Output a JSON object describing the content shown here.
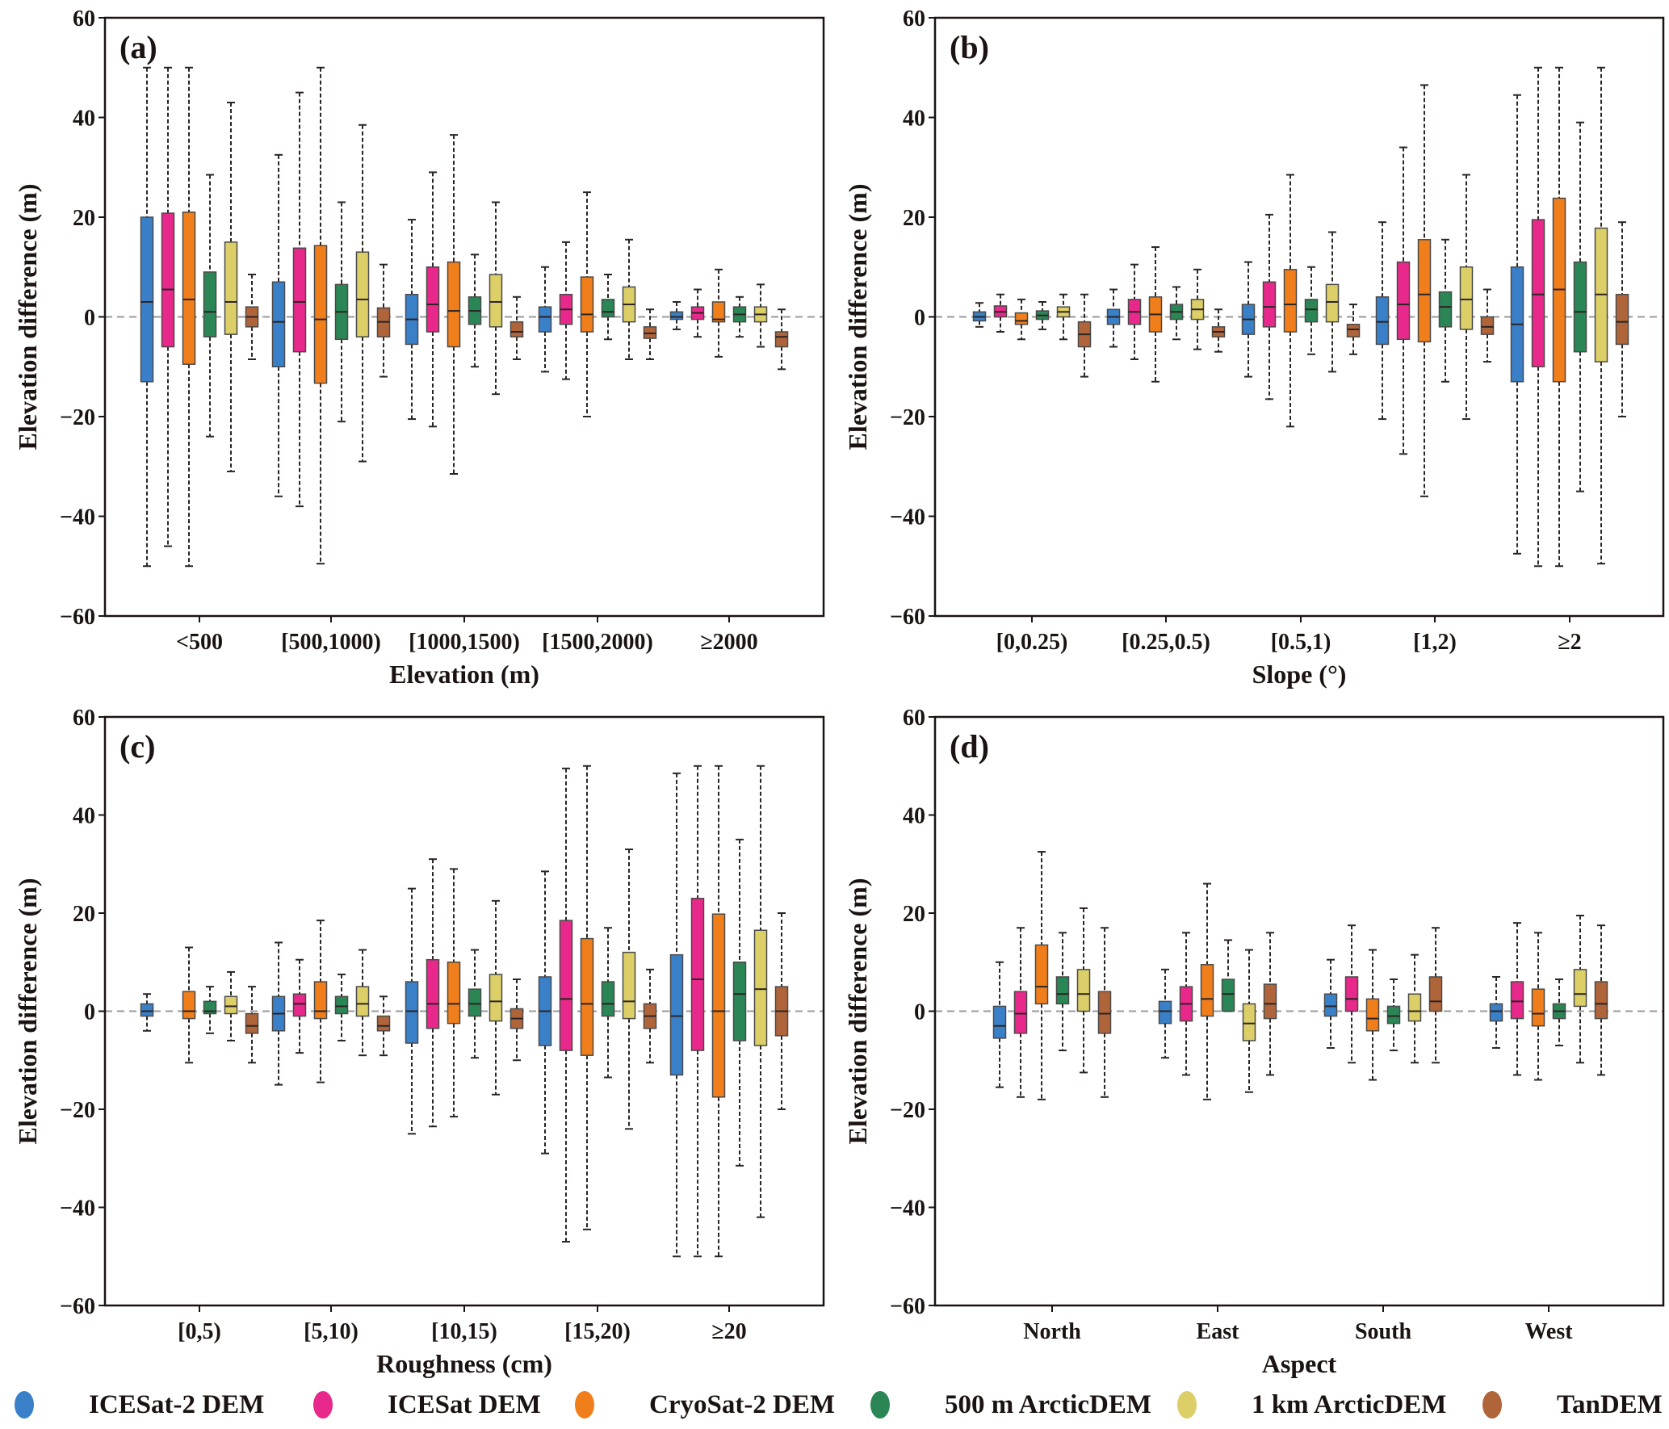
{
  "legend": [
    {
      "name": "ICESat-2 DEM",
      "color": "#3a80c8"
    },
    {
      "name": "ICESat DEM",
      "color": "#e8288a"
    },
    {
      "name": "CryoSat-2 DEM",
      "color": "#f07e1b"
    },
    {
      "name": "500 m ArcticDEM",
      "color": "#2a8654"
    },
    {
      "name": "1 km ArcticDEM",
      "color": "#dccf68"
    },
    {
      "name": "TanDEM",
      "color": "#b0643a"
    }
  ],
  "chart_data": [
    {
      "type": "box",
      "panel_label": "(a)",
      "xlabel": "Elevation (m)",
      "ylabel": "Elevation difference (m)",
      "ylim": [
        -60,
        60
      ],
      "yticks": [
        60,
        40,
        20,
        0,
        -20,
        -40,
        -60
      ],
      "reference_line": 0,
      "categories": [
        "<500",
        "[500,1000)",
        "[1000,1500)",
        "[1500,2000)",
        "≥2000"
      ],
      "series": [
        {
          "name": "ICESat-2 DEM",
          "boxes": [
            [
              -50,
              -13,
              3,
              20,
              50
            ],
            [
              -36,
              -10,
              -1,
              7,
              32.5
            ],
            [
              -20.5,
              -5.5,
              -0.5,
              4.5,
              19.5
            ],
            [
              -11,
              -3,
              0,
              2,
              10
            ],
            [
              -2.5,
              -0.5,
              0,
              1,
              3
            ]
          ]
        },
        {
          "name": "ICESat DEM",
          "boxes": [
            [
              -46,
              -6,
              5.5,
              20.8,
              50
            ],
            [
              -38,
              -7,
              3,
              13.8,
              45
            ],
            [
              -22,
              -3,
              2.5,
              10,
              29
            ],
            [
              -12.5,
              -1.5,
              1.5,
              4.5,
              15
            ],
            [
              -4,
              -0.5,
              0.8,
              2,
              5.5
            ]
          ]
        },
        {
          "name": "CryoSat-2 DEM",
          "boxes": [
            [
              -50,
              -9.5,
              3.5,
              21,
              50
            ],
            [
              -49.5,
              -13.3,
              -0.5,
              14.3,
              50
            ],
            [
              -31.5,
              -6,
              1.2,
              11,
              36.5
            ],
            [
              -20,
              -3,
              0.5,
              8,
              25
            ],
            [
              -8,
              -1,
              -0.5,
              3,
              9.5
            ]
          ]
        },
        {
          "name": "500 m ArcticDEM",
          "boxes": [
            [
              -24,
              -4,
              1,
              9,
              28.5
            ],
            [
              -21,
              -4.5,
              1,
              6.5,
              23
            ],
            [
              -10,
              -1.5,
              1.2,
              4,
              12.5
            ],
            [
              -4.5,
              0,
              1,
              3.5,
              8.5
            ],
            [
              -4,
              -1,
              0.5,
              2,
              4
            ]
          ]
        },
        {
          "name": "1 km ArcticDEM",
          "boxes": [
            [
              -31,
              -3.5,
              3,
              15,
              43
            ],
            [
              -29,
              -4,
              3.5,
              13,
              38.5
            ],
            [
              -15.5,
              -2,
              3,
              8.5,
              23
            ],
            [
              -8.5,
              -1,
              2.5,
              6,
              15.5
            ],
            [
              -6,
              -1,
              0.5,
              2,
              6.5
            ]
          ]
        },
        {
          "name": "TanDEM",
          "boxes": [
            [
              -8.5,
              -2,
              0,
              2,
              8.5
            ],
            [
              -12,
              -4,
              -1,
              1.8,
              10.5
            ],
            [
              -8.5,
              -4,
              -3,
              -1,
              4
            ],
            [
              -8.5,
              -4.3,
              -3.3,
              -2,
              1.5
            ],
            [
              -10.5,
              -6,
              -4,
              -3,
              1.5
            ]
          ]
        }
      ]
    },
    {
      "type": "box",
      "panel_label": "(b)",
      "xlabel": "Slope (°)",
      "ylabel": "Elevation difference (m)",
      "ylim": [
        -60,
        60
      ],
      "yticks": [
        60,
        40,
        20,
        0,
        -20,
        -40,
        -60
      ],
      "reference_line": 0,
      "categories": [
        "[0,0.25)",
        "[0.25,0.5)",
        "[0.5,1)",
        "[1,2)",
        "≥2"
      ],
      "series": [
        {
          "name": "ICESat-2 DEM",
          "boxes": [
            [
              -2,
              -0.8,
              0,
              1,
              2.8
            ],
            [
              -6,
              -1.5,
              0,
              1.5,
              5.5
            ],
            [
              -12,
              -3.5,
              -0.5,
              2.5,
              11
            ],
            [
              -20.5,
              -5.5,
              -1,
              4,
              19
            ],
            [
              -47.5,
              -13,
              -1.5,
              10,
              44.5
            ]
          ]
        },
        {
          "name": "ICESat DEM",
          "boxes": [
            [
              -3,
              0,
              1,
              2.2,
              4.5
            ],
            [
              -8.5,
              -1.5,
              1,
              3.5,
              10.5
            ],
            [
              -16.5,
              -2,
              2,
              7,
              20.5
            ],
            [
              -27.5,
              -4.5,
              2.5,
              11,
              34
            ],
            [
              -50,
              -10,
              4.5,
              19.5,
              50
            ]
          ]
        },
        {
          "name": "CryoSat-2 DEM",
          "boxes": [
            [
              -4.5,
              -1.5,
              -0.8,
              0.8,
              3.5
            ],
            [
              -13,
              -3,
              0.5,
              4,
              14
            ],
            [
              -22,
              -3,
              2.5,
              9.5,
              28.5
            ],
            [
              -36,
              -5,
              4.5,
              15.5,
              46.5
            ],
            [
              -50,
              -13,
              5.5,
              23.8,
              50
            ]
          ]
        },
        {
          "name": "500 m ArcticDEM",
          "boxes": [
            [
              -2.5,
              -0.5,
              0.3,
              1.2,
              3
            ],
            [
              -4.5,
              -0.5,
              1,
              2.5,
              6
            ],
            [
              -7.5,
              -1,
              1.5,
              3.5,
              10
            ],
            [
              -13,
              -2,
              2,
              5,
              15.5
            ],
            [
              -35,
              -7,
              1,
              11,
              39
            ]
          ]
        },
        {
          "name": "1 km ArcticDEM",
          "boxes": [
            [
              -4.5,
              0,
              1,
              2,
              4.5
            ],
            [
              -6.5,
              -0.5,
              1.5,
              3.5,
              9.5
            ],
            [
              -11,
              -1,
              3,
              6.5,
              17
            ],
            [
              -20.5,
              -2.5,
              3.5,
              10,
              28.5
            ],
            [
              -49.5,
              -9,
              4.5,
              17.8,
              50
            ]
          ]
        },
        {
          "name": "TanDEM",
          "boxes": [
            [
              -12,
              -6,
              -3.5,
              -1,
              4.5
            ],
            [
              -7,
              -4,
              -3,
              -2,
              1.5
            ],
            [
              -7.5,
              -4,
              -2.5,
              -1.5,
              2.5
            ],
            [
              -9,
              -3.5,
              -2,
              0,
              5.5
            ],
            [
              -20,
              -5.5,
              -1,
              4.5,
              19
            ]
          ]
        }
      ]
    },
    {
      "type": "box",
      "panel_label": "(c)",
      "xlabel": "Roughness (cm)",
      "ylabel": "Elevation difference (m)",
      "ylim": [
        -60,
        60
      ],
      "yticks": [
        60,
        40,
        20,
        0,
        -20,
        -40,
        -60
      ],
      "reference_line": 0,
      "categories": [
        "[0,5)",
        "[5,10)",
        "[10,15)",
        "[15,20)",
        "≥20"
      ],
      "series": [
        {
          "name": "ICESat-2 DEM",
          "boxes": [
            [
              -4,
              -1,
              0,
              1.5,
              3.5
            ],
            [
              -15,
              -4,
              -0.5,
              3,
              14
            ],
            [
              -25,
              -6.5,
              0,
              6,
              25
            ],
            [
              -29,
              -7,
              0,
              7,
              28.5
            ],
            [
              -50,
              -13,
              -1,
              11.5,
              48.5
            ]
          ]
        },
        {
          "name": "ICESat DEM",
          "boxes": [
            null,
            [
              -8.5,
              -1,
              1.5,
              3.5,
              10.5
            ],
            [
              -23.5,
              -3.5,
              1.5,
              10.5,
              31
            ],
            [
              -47,
              -8,
              2.5,
              18.5,
              49.5
            ],
            [
              -50,
              -8,
              6.5,
              23,
              50
            ]
          ]
        },
        {
          "name": "CryoSat-2 DEM",
          "boxes": [
            [
              -10.5,
              -1.5,
              0,
              4,
              13
            ],
            [
              -14.5,
              -1.5,
              0,
              6,
              18.5
            ],
            [
              -21.5,
              -2.5,
              1.5,
              10,
              29
            ],
            [
              -44.5,
              -9,
              1.5,
              14.8,
              50
            ],
            [
              -50,
              -17.5,
              0,
              19.8,
              50
            ]
          ]
        },
        {
          "name": "500 m ArcticDEM",
          "boxes": [
            [
              -4.5,
              -0.5,
              0,
              2,
              5
            ],
            [
              -6,
              -0.5,
              1,
              3,
              7.5
            ],
            [
              -9.5,
              -1,
              1.5,
              4.5,
              12.5
            ],
            [
              -13.5,
              -1,
              1.5,
              6,
              17
            ],
            [
              -31.5,
              -6,
              3.5,
              10,
              35
            ]
          ]
        },
        {
          "name": "1 km ArcticDEM",
          "boxes": [
            [
              -6,
              -0.5,
              1,
              3,
              8
            ],
            [
              -9,
              -1,
              1.5,
              5,
              12.5
            ],
            [
              -17,
              -2,
              2,
              7.5,
              22.5
            ],
            [
              -24,
              -1.5,
              2,
              12,
              33
            ],
            [
              -42,
              -7,
              4.5,
              16.5,
              50
            ]
          ]
        },
        {
          "name": "TanDEM",
          "boxes": [
            [
              -10.5,
              -4.5,
              -3,
              -0.5,
              5
            ],
            [
              -9,
              -4,
              -3,
              -1,
              3
            ],
            [
              -10,
              -3.5,
              -1.5,
              0.5,
              6.5
            ],
            [
              -10.5,
              -3.5,
              -1,
              1.5,
              8.5
            ],
            [
              -20,
              -5,
              0,
              5,
              20
            ]
          ]
        }
      ]
    },
    {
      "type": "box",
      "panel_label": "(d)",
      "xlabel": "Aspect",
      "ylabel": "Elevation difference (m)",
      "ylim": [
        -60,
        60
      ],
      "yticks": [
        60,
        40,
        20,
        0,
        -20,
        -40,
        -60
      ],
      "reference_line": 0,
      "categories": [
        "North",
        "East",
        "South",
        "West"
      ],
      "series": [
        {
          "name": "ICESat-2 DEM",
          "boxes": [
            [
              -15.5,
              -5.5,
              -3,
              1,
              10
            ],
            [
              -9.5,
              -2.5,
              0,
              2,
              8.5
            ],
            [
              -7.5,
              -1,
              1,
              3.5,
              10.5
            ],
            [
              -7.5,
              -2,
              0,
              1.5,
              7
            ]
          ]
        },
        {
          "name": "ICESat DEM",
          "boxes": [
            [
              -17.5,
              -4.5,
              -0.5,
              4,
              17
            ],
            [
              -13,
              -2,
              1.5,
              5,
              16
            ],
            [
              -10.5,
              0,
              2.5,
              7,
              17.5
            ],
            [
              -13,
              -1.5,
              2,
              6,
              18
            ]
          ]
        },
        {
          "name": "CryoSat-2 DEM",
          "boxes": [
            [
              -18,
              1.5,
              5,
              13.5,
              32.5
            ],
            [
              -18,
              -1,
              2.5,
              9.5,
              26
            ],
            [
              -14,
              -4,
              -1.5,
              2.5,
              12.5
            ],
            [
              -14,
              -3,
              -0.5,
              4.5,
              16
            ]
          ]
        },
        {
          "name": "500 m ArcticDEM",
          "boxes": [
            [
              -8,
              1.5,
              3.5,
              7,
              16
            ],
            [
              0,
              0,
              3.5,
              6.5,
              14.5
            ],
            [
              -8,
              -2.5,
              -1,
              1,
              6.5
            ],
            [
              -7,
              -1.5,
              0,
              1.5,
              6.5
            ]
          ]
        },
        {
          "name": "1 km ArcticDEM",
          "boxes": [
            [
              -12.5,
              0,
              3.5,
              8.5,
              21
            ],
            [
              -16.5,
              -6,
              -2.5,
              1.5,
              12.5
            ],
            [
              -10.5,
              -2,
              0,
              3.5,
              11.5
            ],
            [
              -10.5,
              1,
              3.5,
              8.5,
              19.5
            ]
          ]
        },
        {
          "name": "TanDEM",
          "boxes": [
            [
              -17.5,
              -4.5,
              -0.5,
              4,
              17
            ],
            [
              -13,
              -1.5,
              1.5,
              5.5,
              16
            ],
            [
              -10.5,
              0,
              2,
              7,
              17
            ],
            [
              -13,
              -1.5,
              1.5,
              6,
              17.5
            ]
          ]
        }
      ]
    }
  ]
}
